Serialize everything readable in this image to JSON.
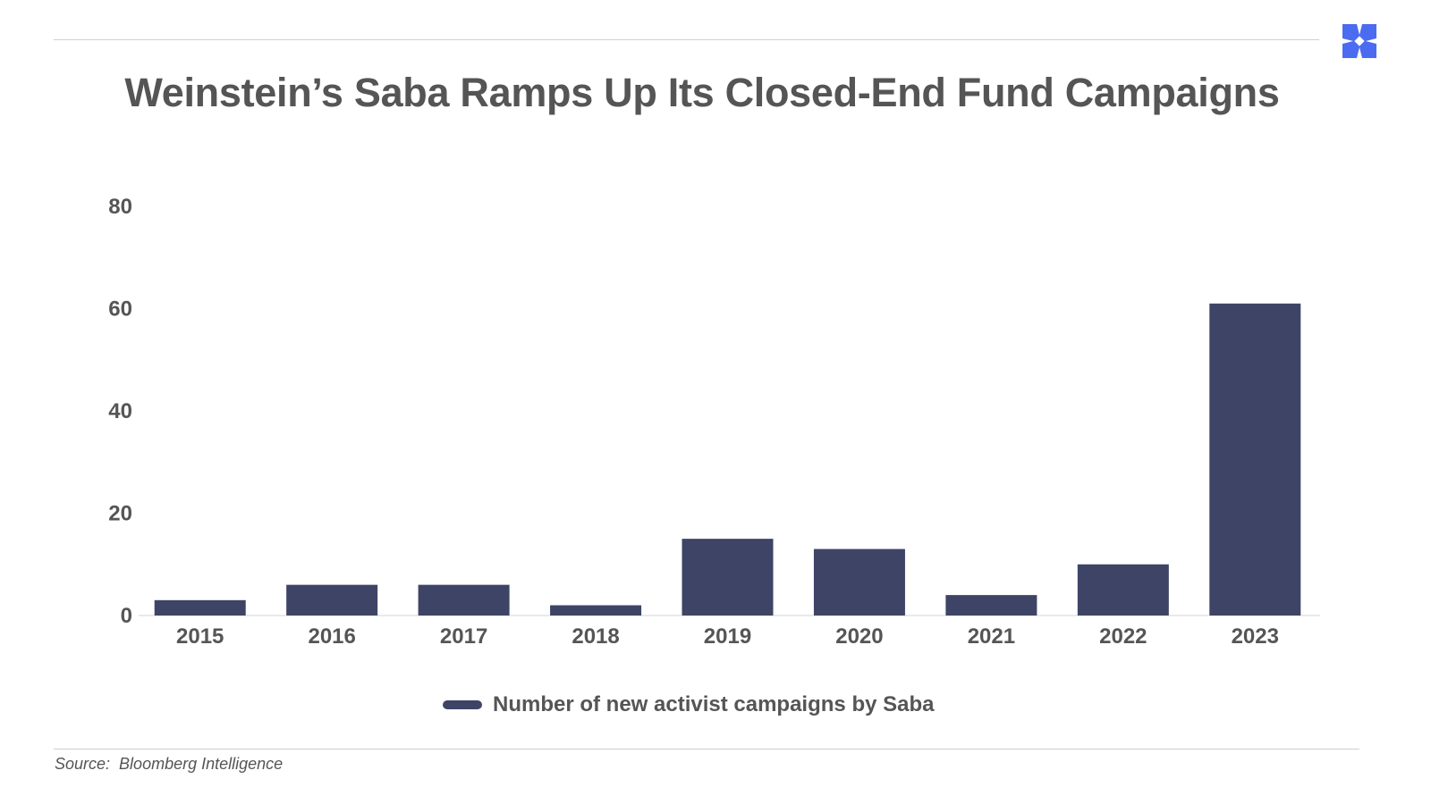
{
  "chart_data": {
    "type": "bar",
    "title": "Weinstein’s Saba Ramps Up Its Closed-End Fund Campaigns",
    "categories": [
      "2015",
      "2016",
      "2017",
      "2018",
      "2019",
      "2020",
      "2021",
      "2022",
      "2023"
    ],
    "series": [
      {
        "name": "Number of new activist campaigns by Saba",
        "values": [
          3,
          6,
          6,
          2,
          15,
          13,
          4,
          10,
          61
        ],
        "color": "#3d4466"
      }
    ],
    "ylim": [
      0,
      80
    ],
    "yticks": [
      "0",
      "20",
      "40",
      "60",
      "80"
    ],
    "xlabel": "",
    "ylabel": "",
    "grid": false,
    "legend_position": "bottom-center"
  },
  "source": {
    "label": "Source:",
    "value": "Bloomberg Intelligence"
  },
  "logo": {
    "icon": "x-cross-logo-icon",
    "color": "#4b6cf0"
  }
}
